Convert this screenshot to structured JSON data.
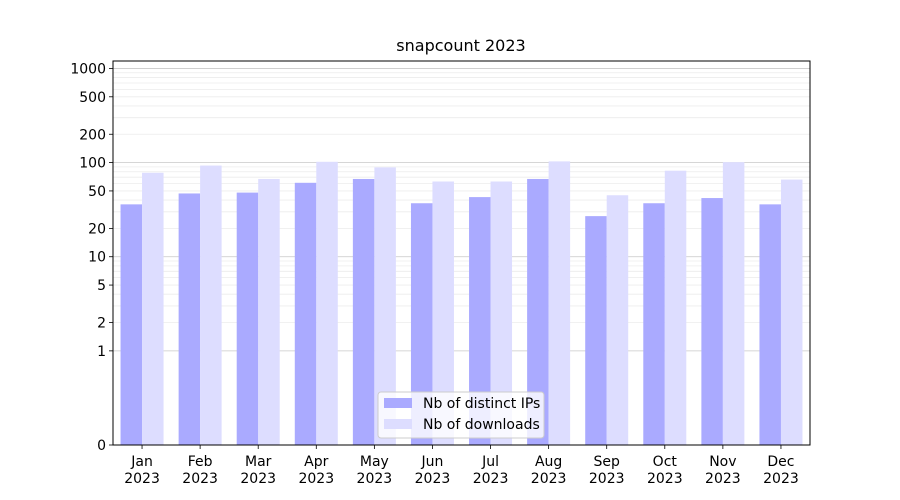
{
  "chart_data": {
    "type": "bar",
    "title": "snapcount 2023",
    "xlabel": "",
    "ylabel": "",
    "yscale": "symlog",
    "ylim": [
      0,
      1200
    ],
    "y_ticks": [
      0,
      1,
      2,
      5,
      10,
      20,
      50,
      100,
      200,
      500,
      1000
    ],
    "grid": true,
    "legend_position": "bottom-center",
    "categories": [
      {
        "month": "Jan",
        "year": "2023"
      },
      {
        "month": "Feb",
        "year": "2023"
      },
      {
        "month": "Mar",
        "year": "2023"
      },
      {
        "month": "Apr",
        "year": "2023"
      },
      {
        "month": "May",
        "year": "2023"
      },
      {
        "month": "Jun",
        "year": "2023"
      },
      {
        "month": "Jul",
        "year": "2023"
      },
      {
        "month": "Aug",
        "year": "2023"
      },
      {
        "month": "Sep",
        "year": "2023"
      },
      {
        "month": "Oct",
        "year": "2023"
      },
      {
        "month": "Nov",
        "year": "2023"
      },
      {
        "month": "Dec",
        "year": "2023"
      }
    ],
    "series": [
      {
        "name": "Nb of distinct IPs",
        "color": "#aaaaff",
        "values": [
          36,
          47,
          48,
          61,
          67,
          37,
          43,
          67,
          27,
          37,
          42,
          36
        ]
      },
      {
        "name": "Nb of downloads",
        "color": "#ddddff",
        "values": [
          78,
          93,
          67,
          102,
          89,
          63,
          63,
          103,
          45,
          82,
          101,
          66
        ]
      }
    ]
  }
}
